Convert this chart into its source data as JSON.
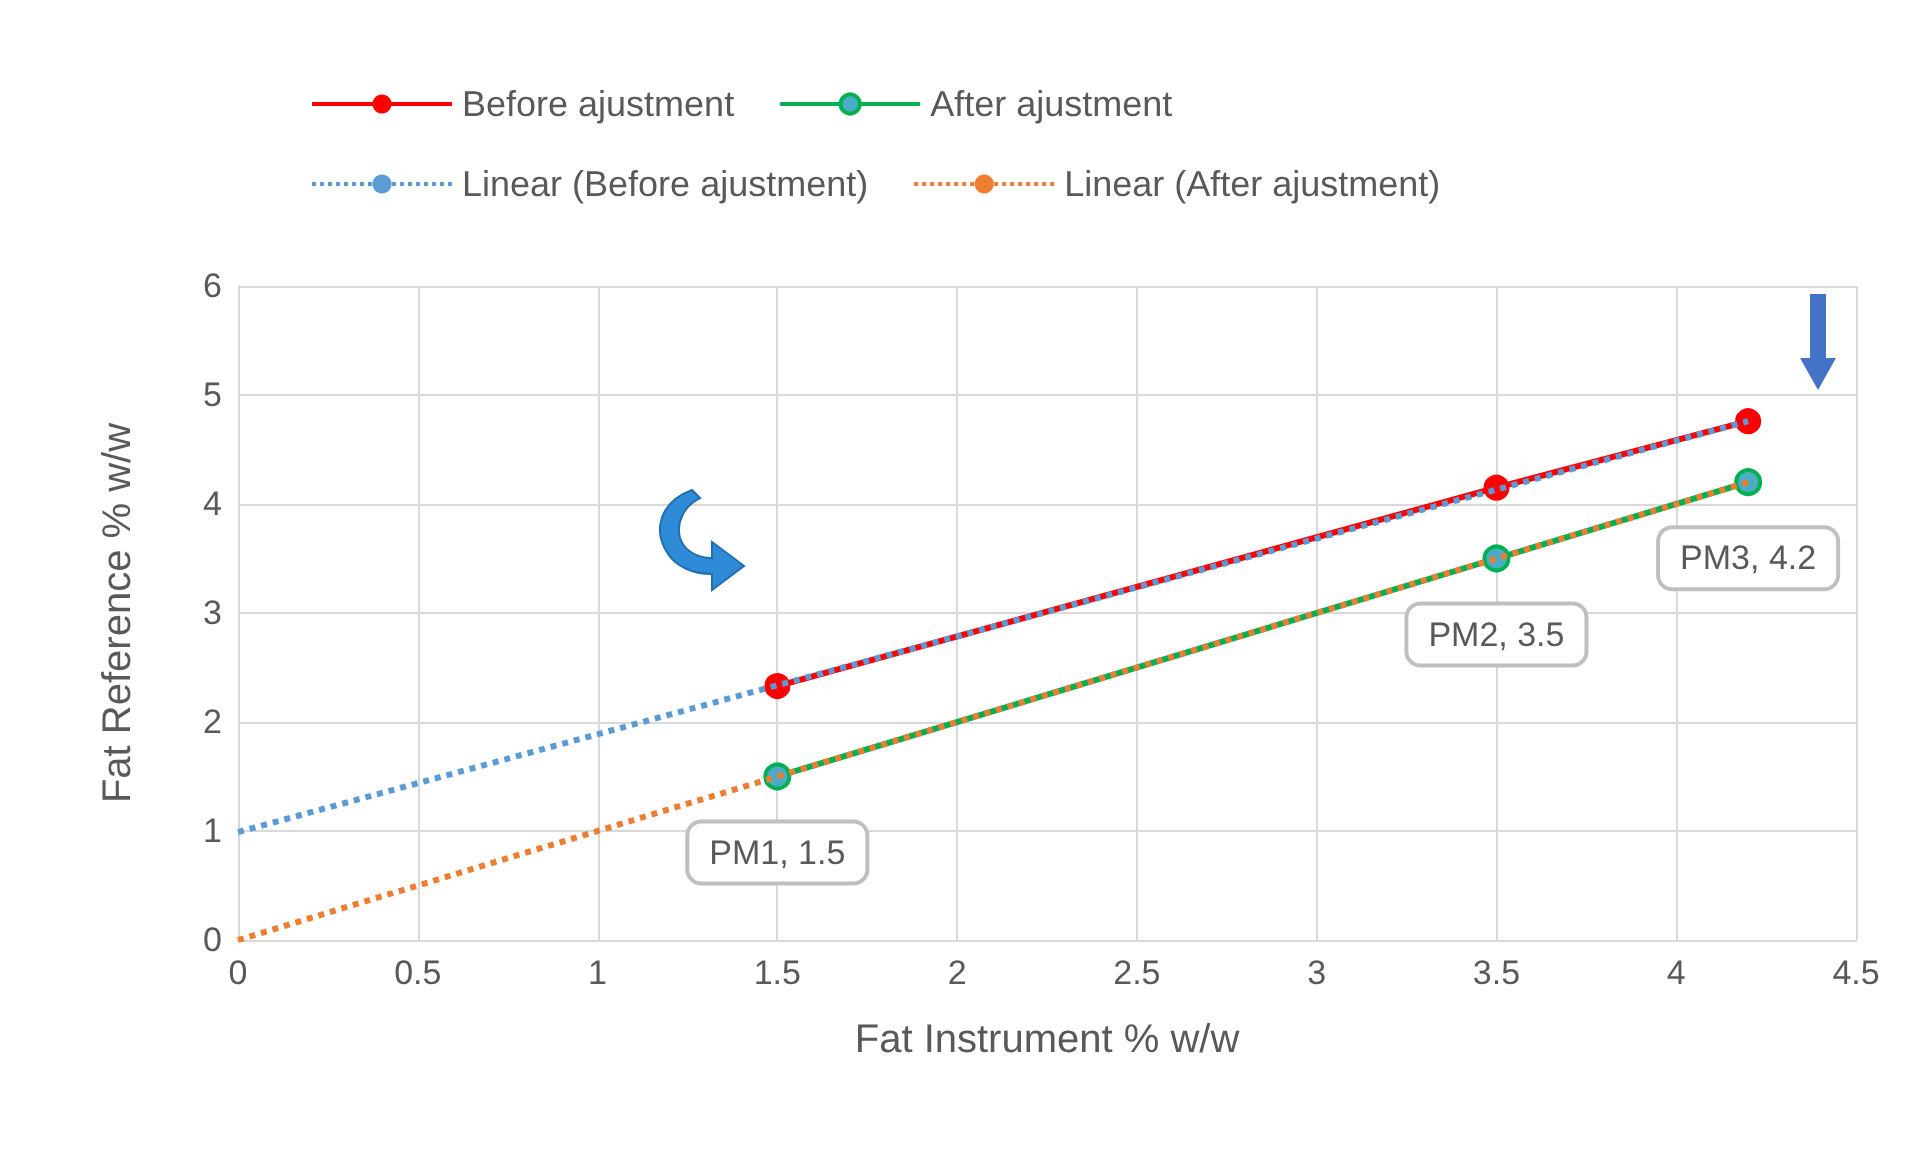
{
  "chart_data": {
    "type": "line",
    "xlabel": "Fat Instrument % w/w",
    "ylabel": "Fat Reference % w/w",
    "series": [
      {
        "name": "Before ajustment",
        "color": "#ff0000",
        "x": [
          1.5,
          3.5,
          4.2
        ],
        "values": [
          2.33,
          4.15,
          4.76
        ],
        "marker": "circle"
      },
      {
        "name": "After ajustment",
        "color": "#00b050",
        "x": [
          1.5,
          3.5,
          4.2
        ],
        "values": [
          1.5,
          3.5,
          4.2
        ],
        "marker": "circle"
      },
      {
        "name": "Linear (Before ajustment)",
        "color": "#5b9bd5",
        "x": [
          0,
          4.2
        ],
        "values": [
          0.99,
          4.76
        ],
        "line_style": "dotted",
        "marker": "none"
      },
      {
        "name": "Linear (After ajustment)",
        "color": "#ed7d31",
        "x": [
          0,
          4.2
        ],
        "values": [
          0,
          4.2
        ],
        "line_style": "dotted",
        "marker": "none"
      }
    ],
    "xlim": [
      0,
      4.5
    ],
    "xticks": [
      0,
      0.5,
      1,
      1.5,
      2,
      2.5,
      3,
      3.5,
      4,
      4.5
    ],
    "ylim": [
      0,
      6
    ],
    "yticks": [
      0,
      1,
      2,
      3,
      4,
      5,
      6
    ],
    "annotations": [
      {
        "text": "PM1, 1.5",
        "x": 1.5,
        "y": 1.5
      },
      {
        "text": "PM2, 3.5",
        "x": 3.5,
        "y": 3.5
      },
      {
        "text": "PM3, 4.2",
        "x": 4.2,
        "y": 4.2
      }
    ],
    "grid": true,
    "legend": "top"
  }
}
